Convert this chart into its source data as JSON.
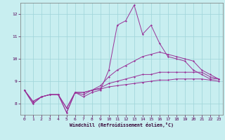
{
  "xlabel": "Windchill (Refroidissement éolien,°C)",
  "background_color": "#c8eef0",
  "grid_color": "#9ed4d8",
  "line_color": "#993399",
  "x_data": [
    0,
    1,
    2,
    3,
    4,
    5,
    6,
    7,
    8,
    9,
    10,
    11,
    12,
    13,
    14,
    15,
    16,
    17,
    18,
    19,
    20,
    21,
    22,
    23
  ],
  "series": {
    "line1": [
      8.6,
      8.0,
      8.3,
      8.4,
      8.4,
      7.6,
      8.5,
      8.3,
      8.5,
      8.6,
      9.5,
      11.5,
      11.7,
      12.4,
      11.1,
      11.5,
      10.7,
      10.1,
      10.0,
      9.9,
      9.5,
      9.3,
      9.1,
      9.1
    ],
    "line2": [
      8.6,
      8.0,
      8.3,
      8.4,
      8.4,
      7.6,
      8.5,
      8.4,
      8.6,
      8.8,
      9.2,
      9.5,
      9.7,
      9.9,
      10.1,
      10.2,
      10.3,
      10.2,
      10.1,
      10.0,
      9.9,
      9.5,
      9.3,
      9.1
    ],
    "line3": [
      8.6,
      8.1,
      8.3,
      8.4,
      8.4,
      7.8,
      8.5,
      8.5,
      8.6,
      8.7,
      8.9,
      9.0,
      9.1,
      9.2,
      9.3,
      9.3,
      9.4,
      9.4,
      9.4,
      9.4,
      9.4,
      9.4,
      9.2,
      9.1
    ],
    "line4": [
      8.6,
      8.1,
      8.3,
      8.4,
      8.4,
      7.8,
      8.5,
      8.5,
      8.6,
      8.65,
      8.75,
      8.8,
      8.85,
      8.9,
      8.95,
      9.0,
      9.05,
      9.05,
      9.1,
      9.1,
      9.1,
      9.1,
      9.05,
      9.0
    ]
  },
  "ylim": [
    7.5,
    12.5
  ],
  "yticks": [
    8,
    9,
    10,
    11,
    12
  ],
  "xlim": [
    -0.5,
    23.5
  ],
  "xticks": [
    0,
    1,
    2,
    3,
    4,
    5,
    6,
    7,
    8,
    9,
    10,
    11,
    12,
    13,
    14,
    15,
    16,
    17,
    18,
    19,
    20,
    21,
    22,
    23
  ]
}
